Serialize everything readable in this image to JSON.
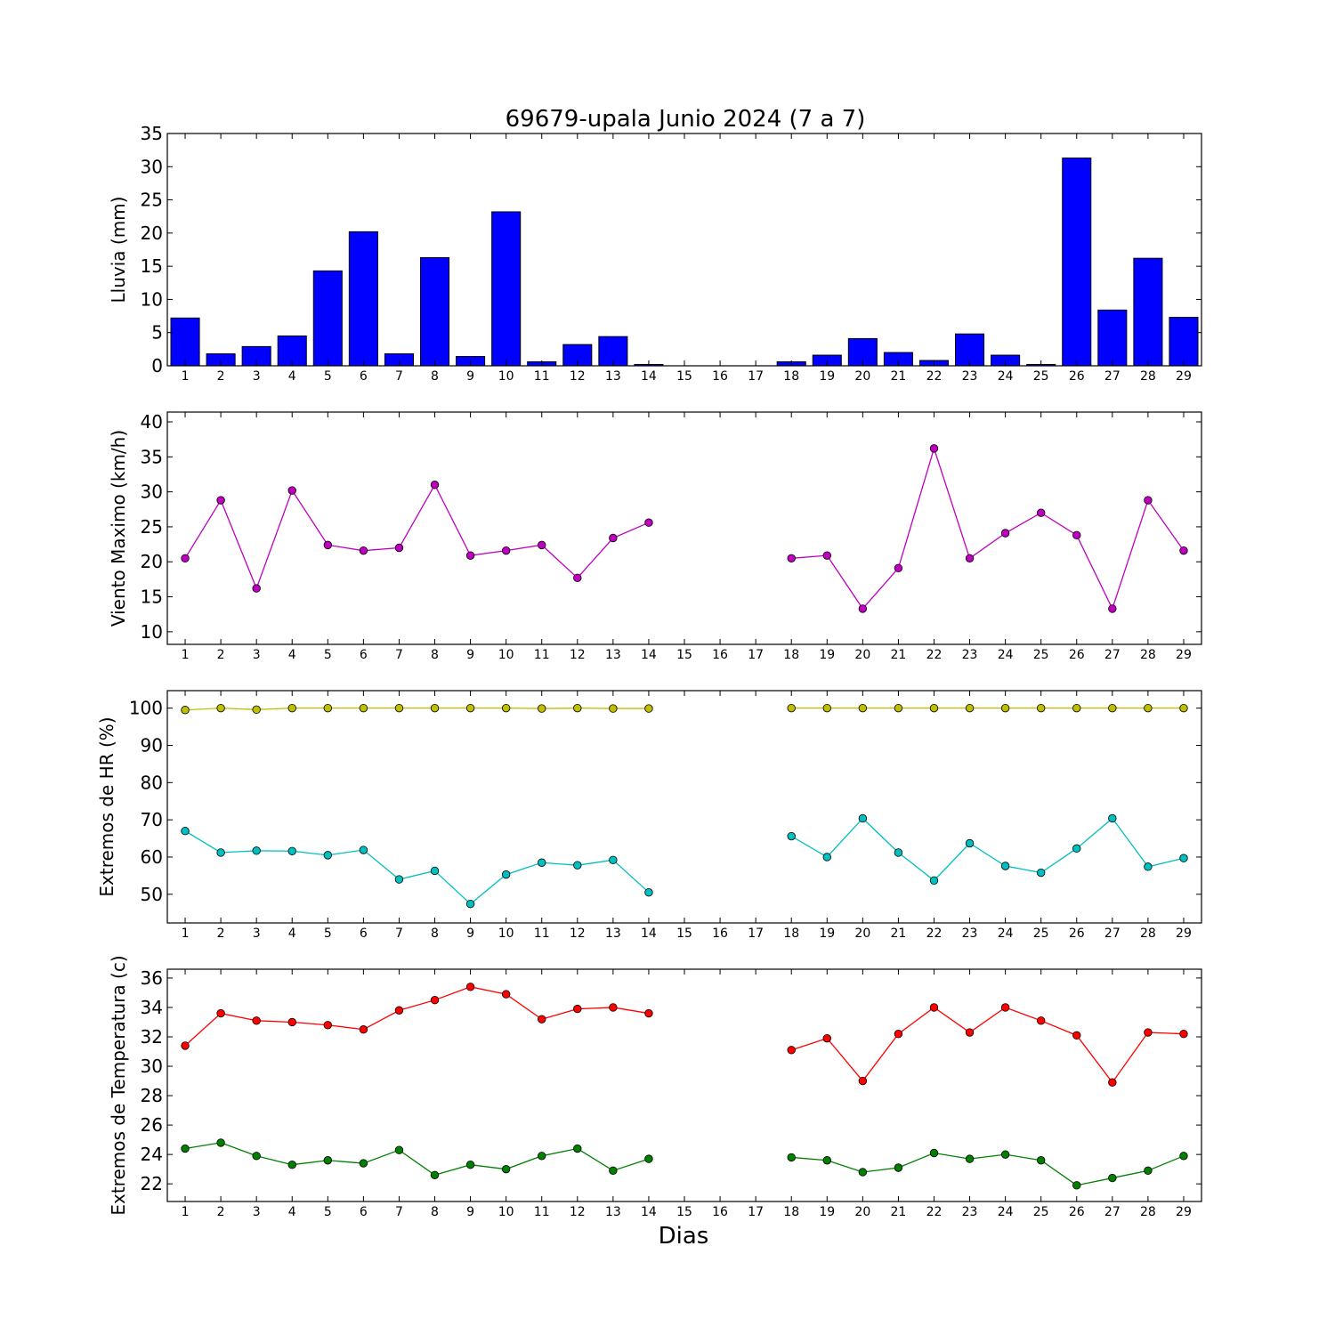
{
  "chart_data": [
    {
      "type": "bar",
      "title": "69679-upala Junio 2024  (7 a 7)",
      "ylabel": "Lluvia (mm)",
      "xlabel": "",
      "ylim": [
        0,
        35
      ],
      "yticks": [
        0,
        5,
        10,
        15,
        20,
        25,
        30,
        35
      ],
      "categories": [
        1,
        2,
        3,
        4,
        5,
        6,
        7,
        8,
        9,
        10,
        11,
        12,
        13,
        14,
        15,
        16,
        17,
        18,
        19,
        20,
        21,
        22,
        23,
        24,
        25,
        26,
        27,
        28,
        29
      ],
      "series": [
        {
          "color": "#0000ff",
          "values": [
            7.2,
            1.8,
            2.9,
            4.5,
            14.3,
            20.2,
            1.8,
            16.3,
            1.4,
            23.2,
            0.6,
            3.2,
            4.4,
            0.2,
            0,
            0,
            0,
            0.6,
            1.6,
            4.1,
            2.0,
            0.8,
            4.8,
            1.6,
            0.2,
            31.3,
            8.4,
            16.2,
            7.3
          ]
        }
      ]
    },
    {
      "type": "line",
      "title": "",
      "ylabel": "Viento Maximo (km/h)",
      "xlabel": "",
      "ylim": [
        8.2,
        41.4
      ],
      "yticks": [
        10,
        15,
        20,
        25,
        30,
        35,
        40
      ],
      "categories": [
        1,
        2,
        3,
        4,
        5,
        6,
        7,
        8,
        9,
        10,
        11,
        12,
        13,
        14,
        15,
        16,
        17,
        18,
        19,
        20,
        21,
        22,
        23,
        24,
        25,
        26,
        27,
        28,
        29
      ],
      "series": [
        {
          "color": "#bf00bf",
          "values": [
            20.5,
            28.8,
            16.2,
            30.2,
            22.4,
            21.6,
            22.0,
            31.0,
            20.9,
            21.6,
            22.4,
            17.7,
            23.4,
            25.6,
            null,
            null,
            null,
            20.5,
            20.9,
            13.3,
            19.1,
            36.2,
            20.5,
            24.1,
            27.0,
            23.8,
            13.3,
            28.8,
            21.6
          ]
        }
      ]
    },
    {
      "type": "line",
      "title": "",
      "ylabel": "Extremos de HR (%)",
      "xlabel": "",
      "ylim": [
        42.3,
        104.7
      ],
      "yticks": [
        50,
        60,
        70,
        80,
        90,
        100
      ],
      "categories": [
        1,
        2,
        3,
        4,
        5,
        6,
        7,
        8,
        9,
        10,
        11,
        12,
        13,
        14,
        15,
        16,
        17,
        18,
        19,
        20,
        21,
        22,
        23,
        24,
        25,
        26,
        27,
        28,
        29
      ],
      "series": [
        {
          "color": "#bfbf00",
          "values": [
            99.5,
            100,
            99.6,
            100,
            100,
            100,
            100,
            100,
            100,
            100,
            99.9,
            100,
            99.9,
            99.9,
            null,
            null,
            null,
            100,
            100,
            100,
            100,
            100,
            100,
            100,
            100,
            100,
            100,
            100,
            100
          ]
        },
        {
          "color": "#00bfbf",
          "values": [
            67.0,
            61.2,
            61.7,
            61.6,
            60.5,
            61.9,
            54.0,
            56.3,
            47.4,
            55.3,
            58.5,
            57.8,
            59.2,
            50.5,
            null,
            null,
            null,
            65.6,
            60.0,
            70.4,
            61.2,
            53.7,
            63.7,
            57.6,
            55.8,
            62.3,
            70.4,
            57.4,
            59.7
          ]
        }
      ]
    },
    {
      "type": "line",
      "title": "",
      "ylabel": "Extremos de Temperatura (c)",
      "xlabel": "Dias",
      "ylim": [
        20.8,
        36.6
      ],
      "yticks": [
        22,
        24,
        26,
        28,
        30,
        32,
        34,
        36
      ],
      "categories": [
        1,
        2,
        3,
        4,
        5,
        6,
        7,
        8,
        9,
        10,
        11,
        12,
        13,
        14,
        15,
        16,
        17,
        18,
        19,
        20,
        21,
        22,
        23,
        24,
        25,
        26,
        27,
        28,
        29
      ],
      "series": [
        {
          "color": "#ff0000",
          "values": [
            31.4,
            33.6,
            33.1,
            33.0,
            32.8,
            32.5,
            33.8,
            34.5,
            35.4,
            34.9,
            33.2,
            33.9,
            34.0,
            33.6,
            null,
            null,
            null,
            31.1,
            31.9,
            29.0,
            32.2,
            34.0,
            32.3,
            34.0,
            33.1,
            32.1,
            28.9,
            32.3,
            32.2
          ]
        },
        {
          "color": "#007f00",
          "values": [
            24.4,
            24.8,
            23.9,
            23.3,
            23.6,
            23.4,
            24.3,
            22.6,
            23.3,
            23.0,
            23.9,
            24.4,
            22.9,
            23.7,
            null,
            null,
            null,
            23.8,
            23.6,
            22.8,
            23.1,
            24.1,
            23.7,
            24.0,
            23.6,
            21.9,
            22.4,
            22.9,
            23.9
          ]
        }
      ]
    }
  ]
}
